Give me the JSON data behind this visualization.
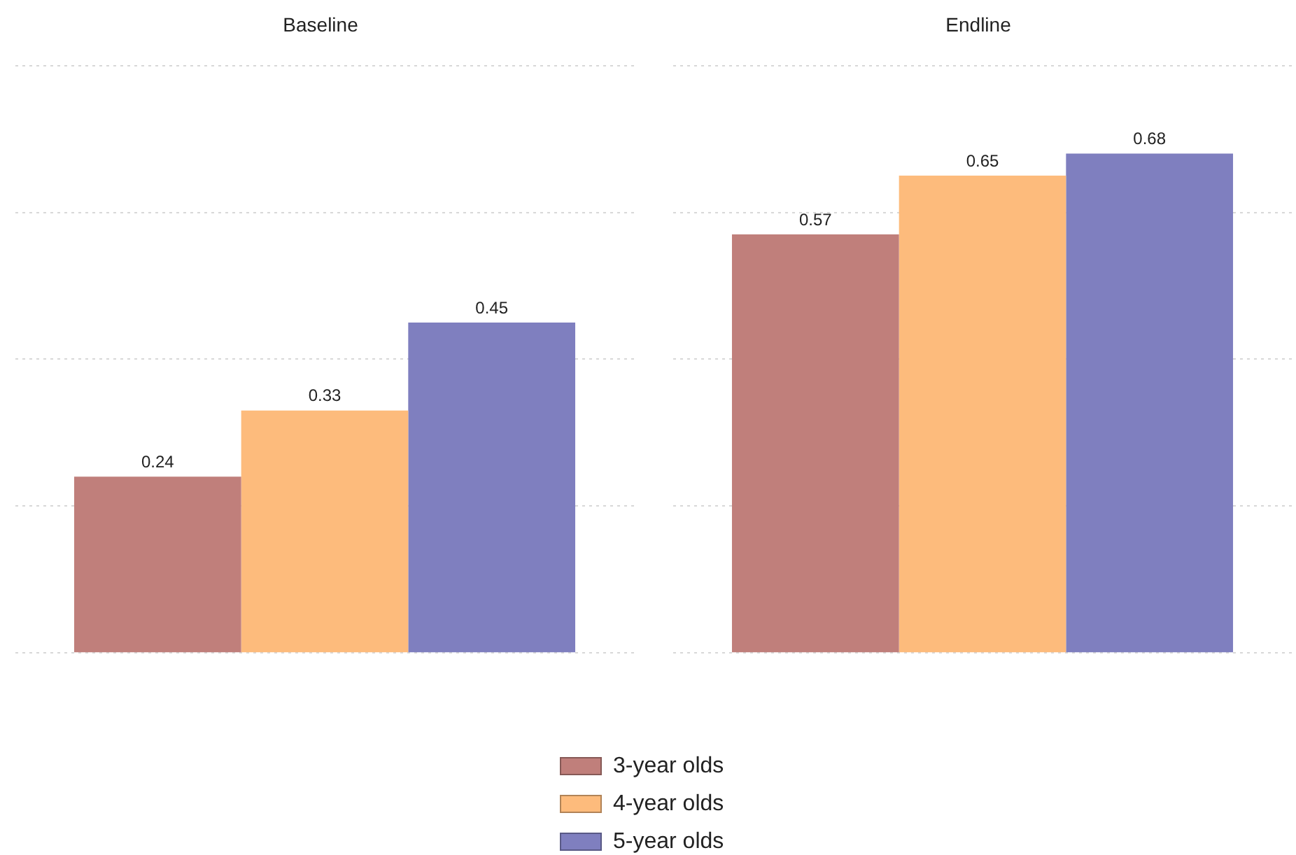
{
  "chart_data": [
    {
      "type": "bar",
      "title": "Baseline",
      "categories": [
        null
      ],
      "series": [
        {
          "name": "3-year olds",
          "color": "#c07f7b",
          "values": [
            0.24
          ]
        },
        {
          "name": "4-year olds",
          "color": "#fdbb7c",
          "values": [
            0.33
          ]
        },
        {
          "name": "5-year olds",
          "color": "#7f7fbf",
          "values": [
            0.45
          ]
        }
      ],
      "ylim": [
        0,
        0.8
      ],
      "yticks": [
        {
          "value": 0,
          "label": null
        },
        {
          "value": 0.2,
          "label": null
        },
        {
          "value": 0.4,
          "label": null
        },
        {
          "value": 0.6,
          "label": null
        },
        {
          "value": 0.8,
          "label": null
        }
      ],
      "grid": "y",
      "data_labels": true,
      "legend": "bottom"
    },
    {
      "type": "bar",
      "title": "Endline",
      "categories": [
        null
      ],
      "series": [
        {
          "color": "#c07f7b",
          "values": [
            0.57
          ]
        },
        {
          "color": "#fdbb7c",
          "values": [
            0.65
          ]
        },
        {
          "color": "#7f7fbf",
          "values": [
            0.68
          ]
        }
      ],
      "ylim": [
        0,
        0.8
      ],
      "yticks": [
        {
          "value": 0,
          "label": null
        },
        {
          "value": 0.2,
          "label": null
        },
        {
          "value": 0.4,
          "label": null
        },
        {
          "value": 0.6,
          "label": null
        },
        {
          "value": 0.8,
          "label": null
        }
      ],
      "grid": "y",
      "data_labels": true
    }
  ]
}
